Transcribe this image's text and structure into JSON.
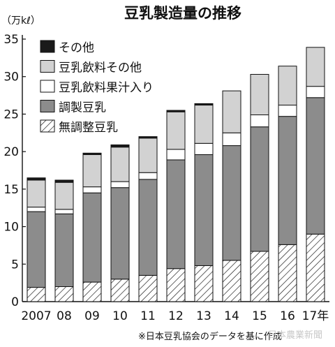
{
  "chart_data": {
    "type": "bar",
    "stacked": true,
    "title": "豆乳製造量の推移",
    "unit_label": "（万kℓ）",
    "categories": [
      "2007",
      "08",
      "09",
      "10",
      "11",
      "12",
      "13",
      "14",
      "15",
      "16",
      "17年"
    ],
    "ylim": [
      0,
      35
    ],
    "yticks": [
      0,
      5,
      10,
      15,
      20,
      25,
      30,
      35
    ],
    "grid": false,
    "legend_position": "top-left",
    "series": [
      {
        "name": "無調整豆乳",
        "color": "#ffffff",
        "pattern": "hatch",
        "values": [
          1.9,
          2.0,
          2.6,
          3.0,
          3.5,
          4.4,
          4.8,
          5.5,
          6.7,
          7.6,
          9.0
        ]
      },
      {
        "name": "調製豆乳",
        "color": "#8c8c8c",
        "values": [
          10.1,
          9.7,
          11.9,
          12.2,
          12.8,
          14.5,
          14.8,
          15.3,
          16.6,
          17.1,
          18.2
        ]
      },
      {
        "name": "豆乳飲料果汁入り",
        "color": "#ffffff",
        "values": [
          0.6,
          0.6,
          0.8,
          0.8,
          0.9,
          1.4,
          1.5,
          1.7,
          1.6,
          1.5,
          1.5
        ]
      },
      {
        "name": "豆乳飲料その他",
        "color": "#d2d2d2",
        "values": [
          3.6,
          3.6,
          4.3,
          4.6,
          4.6,
          5.0,
          5.1,
          5.6,
          5.4,
          5.2,
          5.2
        ]
      },
      {
        "name": "その他",
        "color": "#1a1a1a",
        "values": [
          0.3,
          0.3,
          0.2,
          0.3,
          0.2,
          0.2,
          0.2,
          0.0,
          0.0,
          0.0,
          0.0
        ]
      }
    ],
    "legend_order": [
      "その他",
      "豆乳飲料その他",
      "豆乳飲料果汁入り",
      "調製豆乳",
      "無調整豆乳"
    ],
    "source_note": "※日本豆乳協会のデータを基に作成",
    "credit": "日本農業新聞"
  }
}
